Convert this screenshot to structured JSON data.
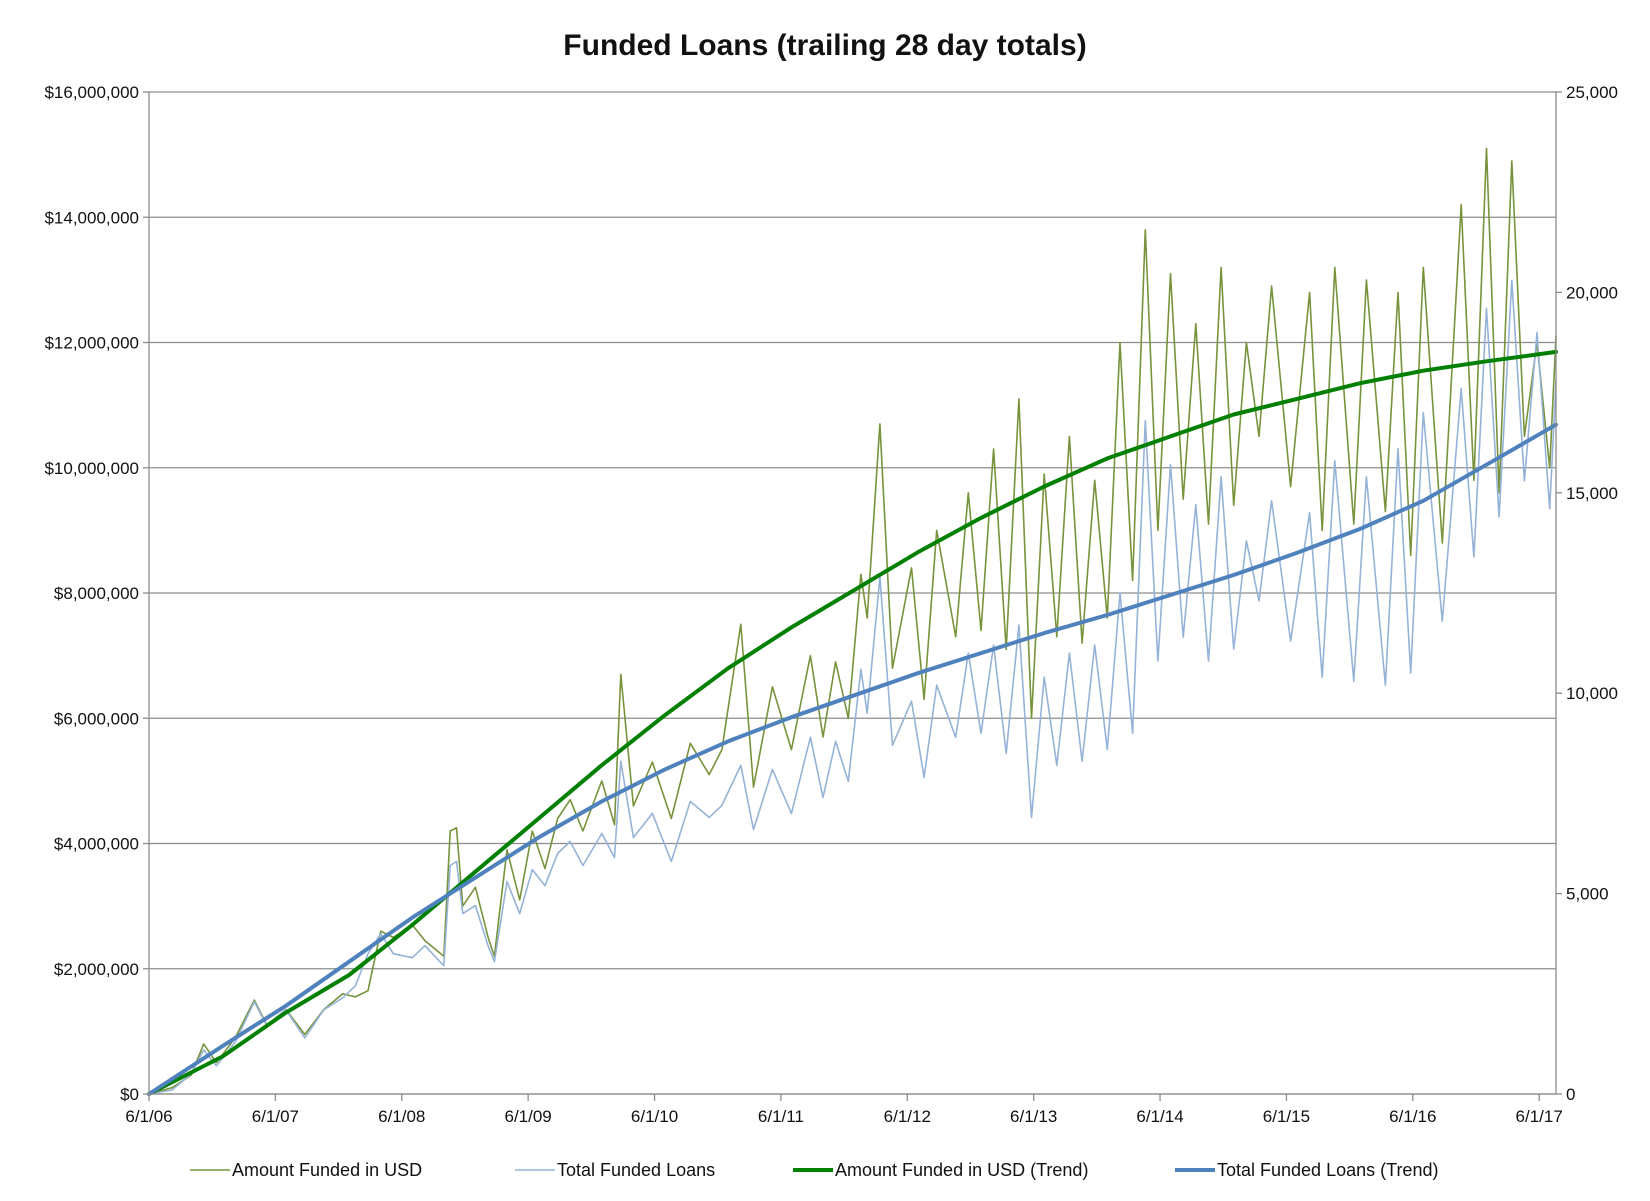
{
  "chart_data": {
    "type": "line",
    "title": "Funded Loans (trailing 28 day totals)",
    "x_ticks": [
      "6/1/06",
      "6/1/07",
      "6/1/08",
      "6/1/09",
      "6/1/10",
      "6/1/11",
      "6/1/12",
      "6/1/13",
      "6/1/14",
      "6/1/15",
      "6/1/16",
      "6/1/17"
    ],
    "x_range": [
      2006.417,
      2017.55
    ],
    "y_left": {
      "range": [
        0,
        16000000
      ],
      "ticks": [
        0,
        2000000,
        4000000,
        6000000,
        8000000,
        10000000,
        12000000,
        14000000,
        16000000
      ],
      "tick_labels": [
        "$0",
        "$2,000,000",
        "$4,000,000",
        "$6,000,000",
        "$8,000,000",
        "$10,000,000",
        "$12,000,000",
        "$14,000,000",
        "$16,000,000"
      ]
    },
    "y_right": {
      "range": [
        0,
        25000
      ],
      "ticks": [
        0,
        5000,
        10000,
        15000,
        20000,
        25000
      ],
      "tick_labels": [
        "0",
        "5,000",
        "10,000",
        "15,000",
        "20,000",
        "25,000"
      ]
    },
    "grid": true,
    "legend_position": "bottom",
    "colors": {
      "amount": "#77933c",
      "loans": "#95b3d7",
      "amount_trend": "#008000",
      "loans_trend": "#4f81bd"
    },
    "series": [
      {
        "name": "Amount Funded in USD",
        "axis": "left",
        "style": "thin",
        "color": "#77933c",
        "points": [
          [
            2006.417,
            0
          ],
          [
            2006.6,
            100000
          ],
          [
            2006.75,
            300000
          ],
          [
            2006.85,
            800000
          ],
          [
            2006.95,
            500000
          ],
          [
            2007.1,
            900000
          ],
          [
            2007.25,
            1500000
          ],
          [
            2007.35,
            1100000
          ],
          [
            2007.5,
            1350000
          ],
          [
            2007.65,
            950000
          ],
          [
            2007.8,
            1350000
          ],
          [
            2007.95,
            1600000
          ],
          [
            2008.05,
            1550000
          ],
          [
            2008.15,
            1650000
          ],
          [
            2008.25,
            2600000
          ],
          [
            2008.35,
            2500000
          ],
          [
            2008.5,
            2700000
          ],
          [
            2008.6,
            2450000
          ],
          [
            2008.75,
            2200000
          ],
          [
            2008.8,
            4200000
          ],
          [
            2008.85,
            4250000
          ],
          [
            2008.9,
            3000000
          ],
          [
            2009.0,
            3300000
          ],
          [
            2009.1,
            2500000
          ],
          [
            2009.15,
            2200000
          ],
          [
            2009.25,
            3900000
          ],
          [
            2009.35,
            3100000
          ],
          [
            2009.45,
            4200000
          ],
          [
            2009.55,
            3600000
          ],
          [
            2009.65,
            4400000
          ],
          [
            2009.75,
            4700000
          ],
          [
            2009.85,
            4200000
          ],
          [
            2010.0,
            5000000
          ],
          [
            2010.1,
            4300000
          ],
          [
            2010.15,
            6700000
          ],
          [
            2010.25,
            4600000
          ],
          [
            2010.4,
            5300000
          ],
          [
            2010.55,
            4400000
          ],
          [
            2010.7,
            5600000
          ],
          [
            2010.85,
            5100000
          ],
          [
            2010.95,
            5500000
          ],
          [
            2011.1,
            7500000
          ],
          [
            2011.2,
            4900000
          ],
          [
            2011.35,
            6500000
          ],
          [
            2011.5,
            5500000
          ],
          [
            2011.65,
            7000000
          ],
          [
            2011.75,
            5700000
          ],
          [
            2011.85,
            6900000
          ],
          [
            2011.95,
            6000000
          ],
          [
            2012.05,
            8300000
          ],
          [
            2012.1,
            7600000
          ],
          [
            2012.2,
            10700000
          ],
          [
            2012.3,
            6800000
          ],
          [
            2012.45,
            8400000
          ],
          [
            2012.55,
            6300000
          ],
          [
            2012.65,
            9000000
          ],
          [
            2012.8,
            7300000
          ],
          [
            2012.9,
            9600000
          ],
          [
            2013.0,
            7400000
          ],
          [
            2013.1,
            10300000
          ],
          [
            2013.2,
            7100000
          ],
          [
            2013.3,
            11100000
          ],
          [
            2013.4,
            6000000
          ],
          [
            2013.5,
            9900000
          ],
          [
            2013.6,
            7300000
          ],
          [
            2013.7,
            10500000
          ],
          [
            2013.8,
            7200000
          ],
          [
            2013.9,
            9800000
          ],
          [
            2014.0,
            7600000
          ],
          [
            2014.1,
            12000000
          ],
          [
            2014.2,
            8200000
          ],
          [
            2014.3,
            13800000
          ],
          [
            2014.4,
            9000000
          ],
          [
            2014.5,
            13100000
          ],
          [
            2014.6,
            9500000
          ],
          [
            2014.7,
            12300000
          ],
          [
            2014.8,
            9100000
          ],
          [
            2014.9,
            13200000
          ],
          [
            2015.0,
            9400000
          ],
          [
            2015.1,
            12000000
          ],
          [
            2015.2,
            10500000
          ],
          [
            2015.3,
            12900000
          ],
          [
            2015.45,
            9700000
          ],
          [
            2015.6,
            12800000
          ],
          [
            2015.7,
            9000000
          ],
          [
            2015.8,
            13200000
          ],
          [
            2015.95,
            9100000
          ],
          [
            2016.05,
            13000000
          ],
          [
            2016.2,
            9300000
          ],
          [
            2016.3,
            12800000
          ],
          [
            2016.4,
            8600000
          ],
          [
            2016.5,
            13200000
          ],
          [
            2016.65,
            8800000
          ],
          [
            2016.8,
            14200000
          ],
          [
            2016.9,
            9800000
          ],
          [
            2017.0,
            15100000
          ],
          [
            2017.1,
            9600000
          ],
          [
            2017.2,
            14900000
          ],
          [
            2017.3,
            10500000
          ],
          [
            2017.4,
            12000000
          ],
          [
            2017.5,
            10000000
          ],
          [
            2017.55,
            12100000
          ]
        ]
      },
      {
        "name": "Total Funded Loans",
        "axis": "right",
        "style": "thin",
        "color": "#95b3d7",
        "points": [
          [
            2006.417,
            0
          ],
          [
            2006.6,
            100
          ],
          [
            2006.75,
            500
          ],
          [
            2006.85,
            1100
          ],
          [
            2006.95,
            700
          ],
          [
            2007.1,
            1300
          ],
          [
            2007.25,
            2300
          ],
          [
            2007.35,
            1700
          ],
          [
            2007.5,
            2100
          ],
          [
            2007.65,
            1400
          ],
          [
            2007.8,
            2100
          ],
          [
            2007.95,
            2400
          ],
          [
            2008.05,
            2700
          ],
          [
            2008.15,
            3500
          ],
          [
            2008.25,
            4000
          ],
          [
            2008.35,
            3500
          ],
          [
            2008.5,
            3400
          ],
          [
            2008.6,
            3700
          ],
          [
            2008.75,
            3200
          ],
          [
            2008.8,
            5700
          ],
          [
            2008.85,
            5800
          ],
          [
            2008.9,
            4500
          ],
          [
            2009.0,
            4700
          ],
          [
            2009.1,
            3700
          ],
          [
            2009.15,
            3300
          ],
          [
            2009.25,
            5300
          ],
          [
            2009.35,
            4500
          ],
          [
            2009.45,
            5600
          ],
          [
            2009.55,
            5200
          ],
          [
            2009.65,
            6000
          ],
          [
            2009.75,
            6300
          ],
          [
            2009.85,
            5700
          ],
          [
            2010.0,
            6500
          ],
          [
            2010.1,
            5900
          ],
          [
            2010.15,
            8300
          ],
          [
            2010.25,
            6400
          ],
          [
            2010.4,
            7000
          ],
          [
            2010.55,
            5800
          ],
          [
            2010.7,
            7300
          ],
          [
            2010.85,
            6900
          ],
          [
            2010.95,
            7200
          ],
          [
            2011.1,
            8200
          ],
          [
            2011.2,
            6600
          ],
          [
            2011.35,
            8100
          ],
          [
            2011.5,
            7000
          ],
          [
            2011.65,
            8900
          ],
          [
            2011.75,
            7400
          ],
          [
            2011.85,
            8800
          ],
          [
            2011.95,
            7800
          ],
          [
            2012.05,
            10600
          ],
          [
            2012.1,
            9500
          ],
          [
            2012.2,
            12900
          ],
          [
            2012.3,
            8700
          ],
          [
            2012.45,
            9800
          ],
          [
            2012.55,
            7900
          ],
          [
            2012.65,
            10200
          ],
          [
            2012.8,
            8900
          ],
          [
            2012.9,
            11000
          ],
          [
            2013.0,
            9000
          ],
          [
            2013.1,
            11200
          ],
          [
            2013.2,
            8500
          ],
          [
            2013.3,
            11700
          ],
          [
            2013.4,
            6900
          ],
          [
            2013.5,
            10400
          ],
          [
            2013.6,
            8200
          ],
          [
            2013.7,
            11000
          ],
          [
            2013.8,
            8300
          ],
          [
            2013.9,
            11200
          ],
          [
            2014.0,
            8600
          ],
          [
            2014.1,
            12500
          ],
          [
            2014.2,
            9000
          ],
          [
            2014.3,
            16800
          ],
          [
            2014.4,
            10800
          ],
          [
            2014.5,
            15700
          ],
          [
            2014.6,
            11400
          ],
          [
            2014.7,
            14700
          ],
          [
            2014.8,
            10800
          ],
          [
            2014.9,
            15400
          ],
          [
            2015.0,
            11100
          ],
          [
            2015.1,
            13800
          ],
          [
            2015.2,
            12300
          ],
          [
            2015.3,
            14800
          ],
          [
            2015.45,
            11300
          ],
          [
            2015.6,
            14500
          ],
          [
            2015.7,
            10400
          ],
          [
            2015.8,
            15800
          ],
          [
            2015.95,
            10300
          ],
          [
            2016.05,
            15400
          ],
          [
            2016.2,
            10200
          ],
          [
            2016.3,
            16100
          ],
          [
            2016.4,
            10500
          ],
          [
            2016.5,
            17000
          ],
          [
            2016.65,
            11800
          ],
          [
            2016.8,
            17600
          ],
          [
            2016.9,
            13400
          ],
          [
            2017.0,
            19600
          ],
          [
            2017.1,
            14400
          ],
          [
            2017.2,
            20300
          ],
          [
            2017.3,
            15300
          ],
          [
            2017.4,
            19000
          ],
          [
            2017.5,
            14600
          ],
          [
            2017.55,
            17800
          ]
        ]
      },
      {
        "name": "Amount Funded in USD (Trend)",
        "axis": "left",
        "style": "thick",
        "color": "#008000",
        "points": [
          [
            2006.417,
            0
          ],
          [
            2007.0,
            600000
          ],
          [
            2007.5,
            1300000
          ],
          [
            2008.0,
            1900000
          ],
          [
            2008.5,
            2700000
          ],
          [
            2009.0,
            3550000
          ],
          [
            2009.5,
            4400000
          ],
          [
            2010.0,
            5250000
          ],
          [
            2010.5,
            6050000
          ],
          [
            2011.0,
            6800000
          ],
          [
            2011.5,
            7450000
          ],
          [
            2012.0,
            8050000
          ],
          [
            2012.5,
            8650000
          ],
          [
            2013.0,
            9200000
          ],
          [
            2013.5,
            9700000
          ],
          [
            2014.0,
            10150000
          ],
          [
            2014.5,
            10500000
          ],
          [
            2015.0,
            10850000
          ],
          [
            2015.5,
            11100000
          ],
          [
            2016.0,
            11350000
          ],
          [
            2016.5,
            11550000
          ],
          [
            2017.0,
            11700000
          ],
          [
            2017.55,
            11850000
          ]
        ]
      },
      {
        "name": "Total Funded Loans (Trend)",
        "axis": "right",
        "style": "thick",
        "color": "#4f81bd",
        "points": [
          [
            2006.417,
            0
          ],
          [
            2007.0,
            1200
          ],
          [
            2007.5,
            2200
          ],
          [
            2008.0,
            3300
          ],
          [
            2008.5,
            4400
          ],
          [
            2009.0,
            5400
          ],
          [
            2009.5,
            6400
          ],
          [
            2010.0,
            7300
          ],
          [
            2010.5,
            8100
          ],
          [
            2011.0,
            8800
          ],
          [
            2011.5,
            9400
          ],
          [
            2012.0,
            9950
          ],
          [
            2012.5,
            10500
          ],
          [
            2013.0,
            11000
          ],
          [
            2013.5,
            11500
          ],
          [
            2014.0,
            11950
          ],
          [
            2014.5,
            12450
          ],
          [
            2015.0,
            12950
          ],
          [
            2015.5,
            13500
          ],
          [
            2016.0,
            14100
          ],
          [
            2016.5,
            14800
          ],
          [
            2017.0,
            15700
          ],
          [
            2017.55,
            16700
          ]
        ]
      }
    ]
  }
}
